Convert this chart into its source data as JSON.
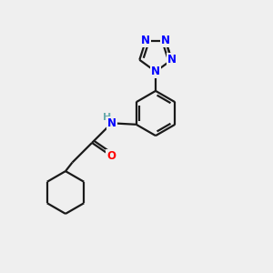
{
  "bg_color": "#efefef",
  "bond_color": "#1a1a1a",
  "nitrogen_color": "#0000ff",
  "oxygen_color": "#ff0000",
  "line_width": 1.6,
  "font_size_atom": 8.5,
  "xlim": [
    0,
    10
  ],
  "ylim": [
    0,
    10
  ]
}
